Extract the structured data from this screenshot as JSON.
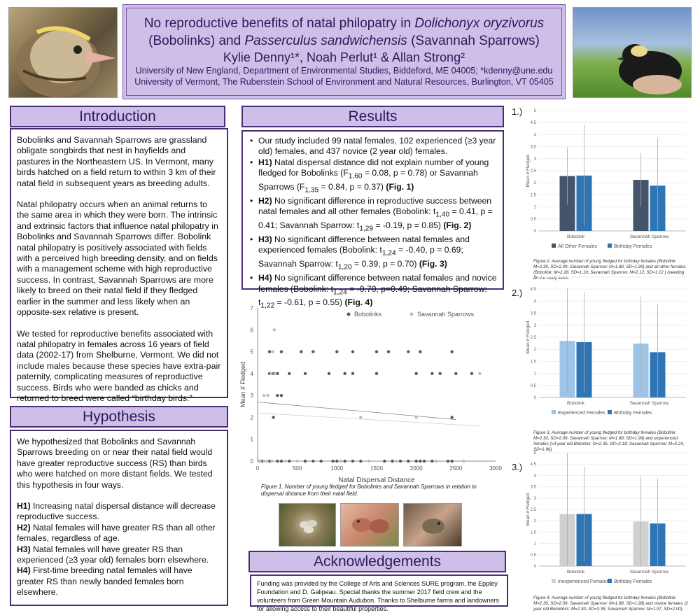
{
  "title": {
    "line1": "No reproductive benefits of natal philopatry in",
    "line1_italic": "Dolichonyx oryzivorus",
    "line2a": "(Bobolinks) and",
    "line2_italic": "Passerculus sandwichensis",
    "line2b": "(Savannah Sparrows)",
    "authors": "Kylie Denny¹*, Noah Perlut¹ & Allan Strong²",
    "aff1": "University of New England, Department of Environmental Studies, Biddeford, ME 04005; *kdenny@une.edu",
    "aff2": "University of Vermont, The Rubenstein School of Environment and Natural Resources, Burlington, VT 05405"
  },
  "intro": {
    "heading": "Introduction",
    "p1": "Bobolinks and Savannah Sparrows are grassland obligate songbirds that nest in hayfields and pastures in the Northeastern US. In Vermont, many birds hatched on a field return to within 3 km of their natal field in subsequent years as breeding adults.",
    "p2": "Natal philopatry occurs when an animal returns to the same area in which they were born. The intrinsic and extrinsic factors that influence natal philopatry in Bobolinks and Savannah Sparrows differ. Bobolink natal philopatry is positively associated with fields with a perceived high breeding density, and on fields with a management scheme with high reproductive success. In contrast, Savannah Sparrows are more likely to breed on their natal field if they fledged earlier in the summer and less likely when an opposite-sex relative is present.",
    "p3": "We tested for reproductive benefits associated with natal philopatry in females across 16 years of field data (2002-17) from Shelburne, Vermont. We did not include males because these species have extra-pair paternity, complicating measures of reproductive success. Birds who were banded as chicks and returned to breed were called “birthday birds.”"
  },
  "hyp": {
    "heading": "Hypothesis",
    "p1": "We hypothesized that Bobolinks and Savannah Sparrows breeding on or near their natal field would have greater reproductive success (RS) than birds who were hatched on more distant fields. We tested this hypothesis in four ways.",
    "h1k": "H1)",
    "h1": " Increasing natal dispersal distance will decrease reproductive success.",
    "h2k": "H2)",
    "h2": " Natal females will have greater RS than all other females, regardless of age.",
    "h3k": "H3)",
    "h3": " Natal females will have greater RS than experienced (≥3 year old) females born elsewhere.",
    "h4k": "H4)",
    "h4": " First-time breeding natal females will have greater RS than newly banded females born elsewhere."
  },
  "results": {
    "heading": "Results",
    "b0": "Our study included 99 natal females, 102 experienced (≥3 year old) females, and 437 novice (2 year old) females.",
    "b1k": "H1)",
    "b1": " Natal dispersal distance did not explain number of young fledged for Bobolinks (F",
    "b1s": "1,60",
    "b1b": " = 0.08, p = 0.78) or Savannah Sparrows (F",
    "b1s2": "1,35",
    "b1c": " = 0.84, p = 0.37)",
    "b1f": " (Fig. 1)",
    "b2k": "H2)",
    "b2": " No significant difference in reproductive success between natal females and all other females (Bobolink: t",
    "b2s": "1,40",
    "b2b": " = 0.41, p = 0.41; Savannah Sparrow: t",
    "b2s2": "1,29",
    "b2c": " = -0.19, p = 0.85)",
    "b2f": " (Fig. 2)",
    "b3k": "H3)",
    "b3": " No significant difference between natal females and experienced females (Bobolink: t",
    "b3s": "1,24",
    "b3b": " = -0.40, p = 0.69; Savannah Sparrow: t",
    "b3s2": "1,20",
    "b3c": " = 0.39, p = 0.70)",
    "b3f": " (Fig. 3)",
    "b4k": "H4)",
    "b4": " No significant difference between natal females and novice females (Bobolink: t",
    "b4s": "1,24",
    "b4b": " = -0.70, p=0.49; Savannah Sparrow: t",
    "b4s2": "1,22",
    "b4c": " = -0.61, p = 0.55)",
    "b4f": " (Fig. 4)"
  },
  "fig1_caption": "Figure 1. Number of young fledged for Bobolinks and Savannah Sparrows in relation to dispersal distance from their natal field.",
  "ack": {
    "heading": "Acknowledgements",
    "text": "Funding was provided by the College of Arts and Sciences SURE program, the Eppley Foundation and D. Galipeau. Special thanks the summer 2017 field crew and the volunteers from Green Mountain Audubon. Thanks to Shelburne farms and landowners for allowing access to their beautiful properties."
  },
  "fig_labels": {
    "f1": "1.)",
    "f2": "2.)",
    "f3": "3.)"
  },
  "bar_captions": {
    "c2": "Figure 2. Average number of young fledged for birthday females (Bobolink: M=2.30, SD=2.09; Savannah Sparrow: M=1.88, SD=1.99) and all other females (Bobolink: M=2.28, SD=1.19; Savannah Sparrow: M=2.12; SD=1.12 ) breeding on the study fields.",
    "c3": "Figure 3. Average number of young fledged for birthday females (Bobolink: M=2.30, SD=2.09; Savannah Sparrow: M=1.88, SD=1.99) and experienced females (≥3 year old Bobolink: M=2.35, SD=2.18; Savannah Sparrow: M=2.24, SD=1.96).",
    "c4": "Figure 4. Average number of young fledged for birthday females (Bobolink: M=2.30, SD=2.09; Savannah Sparrow: M=1.88, SD=1.99) and novice females (2 year old Bobolinks: M=2.30, SD=3.35; Savannah Sparrow: M=1.97, SD=2.00)."
  },
  "colors": {
    "purple_fill": "#cdbfe8",
    "purple_border": "#4b2d74",
    "bobolink": "#5a5a5a",
    "savannah": "#bcbcbc",
    "navy": "#44546a",
    "blue": "#2e75b6",
    "lightblue": "#9dc3e6",
    "gray": "#d0d0d0"
  },
  "chart_data": [
    {
      "type": "scatter",
      "xlabel": "Natal Dispersal Distance",
      "ylabel": "Mean # Fledged",
      "xlim": [
        0,
        3000
      ],
      "ylim": [
        0,
        7
      ],
      "xticks": [
        0,
        500,
        1000,
        1500,
        2000,
        2500,
        3000
      ],
      "yticks": [
        0,
        1,
        2,
        3,
        4,
        5,
        6,
        7
      ],
      "series": [
        {
          "name": "Bobolinks",
          "color": "#5a5a5a",
          "points": [
            [
              20,
              0
            ],
            [
              60,
              0
            ],
            [
              150,
              0
            ],
            [
              250,
              0
            ],
            [
              300,
              0
            ],
            [
              400,
              0
            ],
            [
              600,
              0
            ],
            [
              700,
              0
            ],
            [
              800,
              0
            ],
            [
              950,
              0
            ],
            [
              1000,
              0
            ],
            [
              1100,
              0
            ],
            [
              1200,
              0
            ],
            [
              1300,
              0
            ],
            [
              1600,
              0
            ],
            [
              1700,
              0
            ],
            [
              1800,
              0
            ],
            [
              1900,
              0
            ],
            [
              2000,
              0
            ],
            [
              2050,
              0
            ],
            [
              2100,
              0
            ],
            [
              2200,
              0
            ],
            [
              2400,
              0
            ],
            [
              2450,
              0
            ],
            [
              200,
              2
            ],
            [
              2450,
              2
            ],
            [
              250,
              3
            ],
            [
              300,
              3
            ],
            [
              150,
              4
            ],
            [
              200,
              4
            ],
            [
              250,
              4
            ],
            [
              400,
              4
            ],
            [
              600,
              4
            ],
            [
              900,
              4
            ],
            [
              1100,
              4
            ],
            [
              1200,
              4
            ],
            [
              1500,
              4
            ],
            [
              2000,
              4
            ],
            [
              2200,
              4
            ],
            [
              2300,
              4
            ],
            [
              2500,
              4
            ],
            [
              2700,
              4
            ],
            [
              150,
              5
            ],
            [
              300,
              5
            ],
            [
              550,
              5
            ],
            [
              700,
              5
            ],
            [
              1000,
              5
            ],
            [
              1200,
              5
            ],
            [
              1500,
              5
            ],
            [
              1650,
              5
            ],
            [
              1900,
              5
            ],
            [
              2050,
              5
            ],
            [
              2450,
              5
            ]
          ],
          "trend": [
            [
              0,
              2.7
            ],
            [
              2500,
              1.9
            ]
          ]
        },
        {
          "name": "Savannah Sparrows",
          "color": "#bcbcbc",
          "points": [
            [
              10,
              0
            ],
            [
              30,
              0
            ],
            [
              80,
              0
            ],
            [
              120,
              0
            ],
            [
              180,
              0
            ],
            [
              350,
              0
            ],
            [
              500,
              0
            ],
            [
              1050,
              0
            ],
            [
              1400,
              0
            ],
            [
              1750,
              0
            ],
            [
              2250,
              0
            ],
            [
              2600,
              0
            ],
            [
              80,
              3
            ],
            [
              130,
              3
            ],
            [
              170,
              4
            ],
            [
              220,
              4
            ],
            [
              2800,
              4
            ],
            [
              190,
              5
            ],
            [
              210,
              6
            ],
            [
              1300,
              2
            ],
            [
              2000,
              2
            ]
          ],
          "trend": [
            [
              0,
              2.2
            ],
            [
              2800,
              1.6
            ]
          ]
        }
      ]
    },
    {
      "type": "bar",
      "categories": [
        "Bobolink",
        "Savannah Sparrow"
      ],
      "ylabel": "Mean # Fledged",
      "ylim": [
        0,
        5
      ],
      "series": [
        {
          "name": "All Other Females",
          "values": [
            2.28,
            2.12
          ],
          "sd": [
            1.19,
            1.12
          ],
          "color": "#44546a"
        },
        {
          "name": "Birthday Females",
          "values": [
            2.3,
            1.88
          ],
          "sd": [
            2.09,
            1.99
          ],
          "color": "#2e75b6"
        }
      ]
    },
    {
      "type": "bar",
      "categories": [
        "Bobolink",
        "Savannah Sparrow"
      ],
      "ylabel": "Mean # Fledged",
      "ylim": [
        0,
        5
      ],
      "series": [
        {
          "name": "Experienced Females",
          "values": [
            2.35,
            2.24
          ],
          "sd": [
            2.18,
            1.96
          ],
          "color": "#9dc3e6"
        },
        {
          "name": "Birthday Females",
          "values": [
            2.3,
            1.88
          ],
          "sd": [
            2.09,
            1.99
          ],
          "color": "#2e75b6"
        }
      ]
    },
    {
      "type": "bar",
      "categories": [
        "Bobolink",
        "Savannah Sparrow"
      ],
      "ylabel": "Mean # Fledged",
      "ylim": [
        0,
        5
      ],
      "series": [
        {
          "name": "Inexperienced Females",
          "values": [
            2.3,
            1.97
          ],
          "sd": [
            3.35,
            2.0
          ],
          "color": "#d0d0d0"
        },
        {
          "name": "Birthday Females",
          "values": [
            2.3,
            1.88
          ],
          "sd": [
            2.09,
            1.99
          ],
          "color": "#2e75b6"
        }
      ]
    }
  ]
}
